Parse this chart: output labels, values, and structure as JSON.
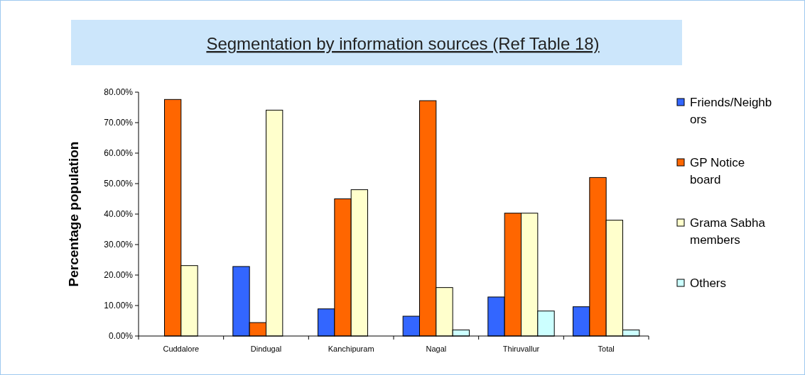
{
  "chart_data": {
    "type": "bar",
    "title": "Segmentation by information sources (Ref Table 18)",
    "ylabel": "Percentage population",
    "categories": [
      "Cuddalore",
      "Dindugal",
      "Kanchipuram",
      "Nagal",
      "Thiruvallur",
      "Total"
    ],
    "series": [
      {
        "name": "Friends/Neighbors",
        "color": "#3366ff",
        "values": [
          null,
          22.8,
          8.9,
          6.5,
          12.8,
          9.6
        ]
      },
      {
        "name": "GP Notice board",
        "color": "#ff6600",
        "values": [
          77.6,
          4.4,
          45,
          77.2,
          40.3,
          52
        ]
      },
      {
        "name": "Grama Sabha members",
        "color": "#ffffcc",
        "values": [
          23.1,
          74.1,
          48,
          15.9,
          40.3,
          38
        ]
      },
      {
        "name": "Others",
        "color": "#ccffff",
        "values": [
          null,
          null,
          null,
          2,
          8.2,
          2
        ]
      }
    ],
    "ylim": [
      0,
      80
    ],
    "yticks": [
      {
        "value": 0,
        "label": "0.00%"
      },
      {
        "value": 10,
        "label": "10.00%"
      },
      {
        "value": 20,
        "label": "20.00%"
      },
      {
        "value": 30,
        "label": "30.00%"
      },
      {
        "value": 40,
        "label": "40.00%"
      },
      {
        "value": 50,
        "label": "50.00%"
      },
      {
        "value": 60,
        "label": "60.00%"
      },
      {
        "value": 70,
        "label": "70.00%"
      },
      {
        "value": 80,
        "label": "80.00%"
      }
    ],
    "grid": false,
    "legend": "right"
  }
}
